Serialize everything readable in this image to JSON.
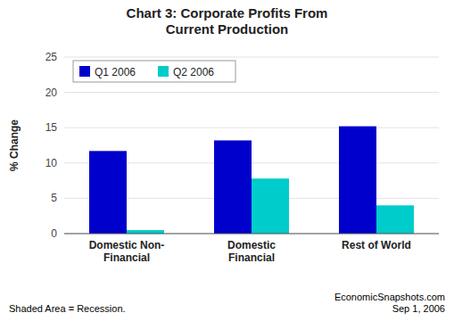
{
  "chart_data": {
    "type": "bar",
    "title": "Chart 3: Corporate Profits From\nCurrent Production",
    "categories": [
      "Domestic Non-\nFinancial",
      "Domestic\nFinancial",
      "Rest of World"
    ],
    "series": [
      {
        "name": "Q1 2006",
        "color": "#0000CC",
        "values": [
          11.7,
          13.2,
          15.2
        ]
      },
      {
        "name": "Q2 2006",
        "color": "#00CCCC",
        "values": [
          0.5,
          7.8,
          4.0
        ]
      }
    ],
    "ylabel": "% Change",
    "ylim": [
      0,
      25
    ],
    "yticks": [
      0,
      5,
      10,
      15,
      20,
      25
    ],
    "grid": true,
    "legend": "upper left",
    "annotations": [
      "Shaded Area = Recession.",
      "EconomicSnapshots.com\nSep 1, 2006"
    ]
  }
}
